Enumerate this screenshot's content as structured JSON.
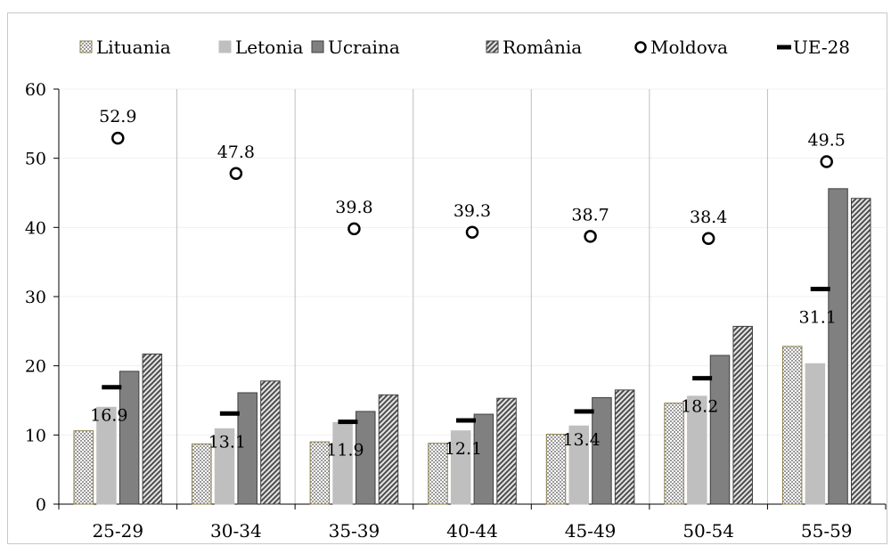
{
  "chart_data": {
    "type": "bar",
    "title": "",
    "xlabel": "",
    "ylabel": "",
    "ylim": [
      0,
      60
    ],
    "yticks": [
      0,
      10,
      20,
      30,
      40,
      50,
      60
    ],
    "legend_position": "top",
    "categories": [
      "25-29",
      "30-34",
      "35-39",
      "40-44",
      "45-49",
      "50-54",
      "55-59"
    ],
    "series": [
      {
        "name": "Lituania",
        "kind": "bar",
        "pattern": "checker",
        "color": "#d9d9d9",
        "border": "#8b7d4a",
        "values": [
          10.6,
          8.7,
          9.0,
          8.8,
          10.1,
          14.6,
          22.8
        ]
      },
      {
        "name": "Letonia",
        "kind": "bar",
        "pattern": "solid",
        "color": "#bfbfbf",
        "border": "#bfbfbf",
        "values": [
          14.0,
          10.9,
          11.8,
          10.6,
          11.3,
          15.6,
          20.3
        ]
      },
      {
        "name": "Ucraina",
        "kind": "bar",
        "pattern": "solid",
        "color": "#808080",
        "border": "#404040",
        "values": [
          19.2,
          16.1,
          13.4,
          13.0,
          15.4,
          21.5,
          45.6
        ]
      },
      {
        "name": "România",
        "kind": "bar",
        "pattern": "diagonal",
        "color": "#a6a6a6",
        "border": "#404040",
        "values": [
          21.7,
          17.8,
          15.8,
          15.3,
          16.5,
          25.7,
          44.2
        ]
      },
      {
        "name": "Moldova",
        "kind": "marker-circle",
        "color": "#000000",
        "values": [
          52.9,
          47.8,
          39.8,
          39.3,
          38.7,
          38.4,
          49.5
        ]
      },
      {
        "name": "UE-28",
        "kind": "marker-dash",
        "color": "#000000",
        "values": [
          16.9,
          13.1,
          11.9,
          12.1,
          13.4,
          18.2,
          31.1
        ]
      }
    ],
    "data_labels": {
      "Moldova": [
        "52.9",
        "47.8",
        "39.8",
        "39.3",
        "38.7",
        "38.4",
        "49.5"
      ],
      "UE-28": [
        "16.9",
        "13.1",
        "11.9",
        "12.1",
        "13.4",
        "18.2",
        "31.1"
      ]
    },
    "grid": {
      "vertical_separators": true,
      "horizontal": true
    }
  }
}
